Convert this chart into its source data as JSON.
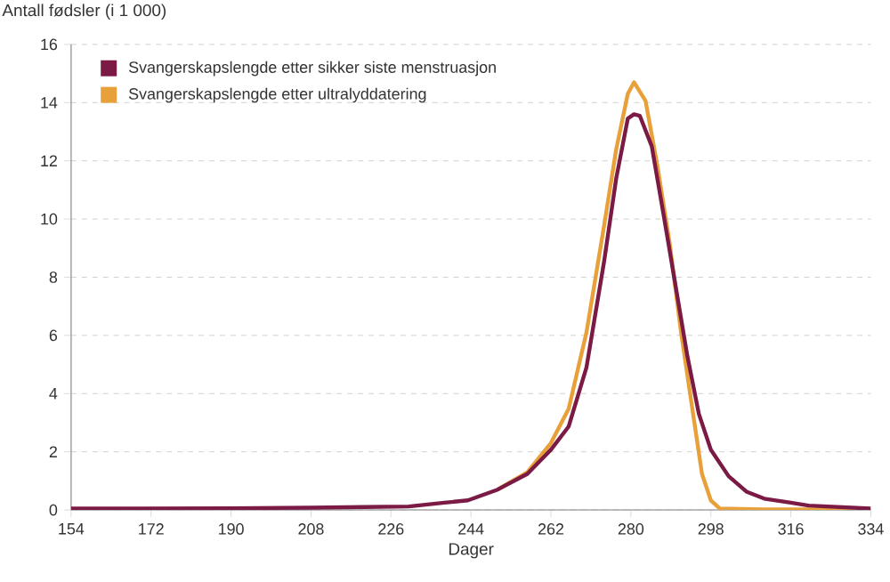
{
  "chart_data": {
    "type": "line",
    "ylabel": "Antall fødsler (i 1 000)",
    "xlabel": "Dager",
    "xlim": [
      154,
      334
    ],
    "xticks": [
      154,
      172,
      190,
      208,
      226,
      244,
      262,
      280,
      298,
      316,
      334
    ],
    "ylim": [
      0,
      16
    ],
    "yticks": [
      0,
      2,
      4,
      6,
      8,
      10,
      12,
      14,
      16
    ],
    "grid": "y",
    "legend": "top left",
    "marker": "none",
    "line_style": "solid",
    "series": [
      {
        "name": "Svangerskapslengde etter sikker siste menstruasjon",
        "color": "#7a1a45",
        "x": [
          154,
          170,
          190,
          208,
          220,
          230,
          238,
          243.3,
          250,
          256.7,
          262,
          266,
          270,
          274,
          276.7,
          279.3,
          280.7,
          282,
          284.7,
          287.3,
          290,
          292.7,
          295.3,
          298,
          302,
          306,
          310,
          316,
          320,
          334
        ],
        "values": [
          0.05,
          0.05,
          0.06,
          0.08,
          0.1,
          0.12,
          0.25,
          0.33,
          0.7,
          1.24,
          2.07,
          2.87,
          4.9,
          8.57,
          11.4,
          13.45,
          13.6,
          13.55,
          12.5,
          10.2,
          7.76,
          5.3,
          3.3,
          2.07,
          1.16,
          0.63,
          0.39,
          0.25,
          0.15,
          0.05
        ]
      },
      {
        "name": "Svangerskapslengde etter ultralyddatering",
        "color": "#e8a03a",
        "x": [
          250,
          256.7,
          262,
          266,
          270,
          274,
          276.7,
          279.3,
          280.7,
          283.3,
          286,
          288.7,
          291.3,
          294,
          296,
          298,
          300,
          310,
          334
        ],
        "values": [
          0.7,
          1.3,
          2.3,
          3.48,
          6.1,
          9.8,
          12.4,
          14.3,
          14.7,
          14.06,
          11.8,
          9.2,
          6.1,
          3.3,
          1.24,
          0.33,
          0.05,
          0.02,
          0.02
        ]
      }
    ]
  }
}
